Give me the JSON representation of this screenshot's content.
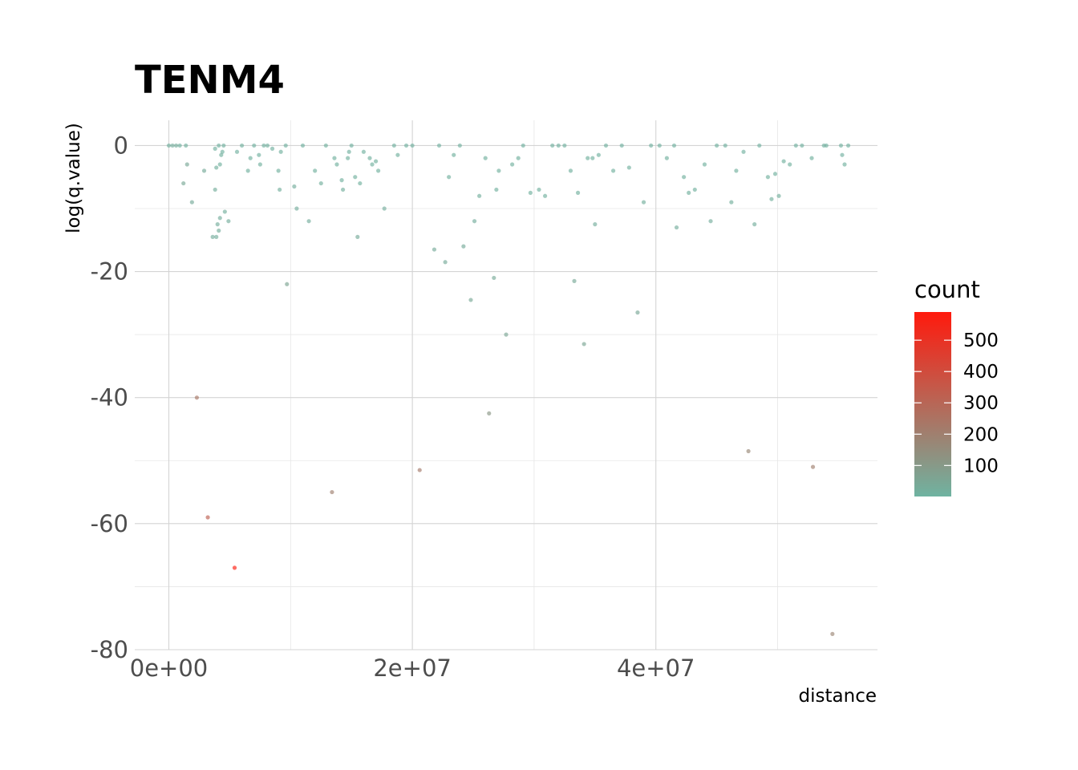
{
  "chart_data": {
    "type": "scatter",
    "title": "TENM4",
    "xlabel": "distance",
    "ylabel": "log(q.value)",
    "xlim": [
      -2800000,
      58200000
    ],
    "ylim": [
      -80,
      4
    ],
    "x_ticks": [
      0,
      20000000,
      40000000
    ],
    "x_tick_labels": [
      "0e+00",
      "2e+07",
      "4e+07"
    ],
    "y_ticks": [
      0,
      -20,
      -40,
      -60,
      -80
    ],
    "y_tick_labels": [
      "0",
      "-20",
      "-40",
      "-60",
      "-80"
    ],
    "grid": true,
    "legend": {
      "title": "count",
      "placement": "right",
      "min": 1,
      "max": 590,
      "ticks": [
        100,
        200,
        300,
        400,
        500
      ],
      "tick_labels": [
        "100",
        "200",
        "300",
        "400",
        "500"
      ],
      "color_low": "#6fb3a1",
      "color_high": "#ff1a0d"
    },
    "points": [
      [
        0,
        0,
        15
      ],
      [
        300000,
        0,
        20
      ],
      [
        600000,
        0,
        25
      ],
      [
        900000,
        0,
        10
      ],
      [
        1400000,
        0,
        12
      ],
      [
        1200000,
        -6,
        40
      ],
      [
        1500000,
        -3,
        45
      ],
      [
        1900000,
        -9,
        30
      ],
      [
        2300000,
        -40,
        230
      ],
      [
        2900000,
        -4,
        30
      ],
      [
        3200000,
        -59,
        320
      ],
      [
        3600000,
        -14.5,
        20
      ],
      [
        3800000,
        -7,
        25
      ],
      [
        3900000,
        -14.5,
        22
      ],
      [
        4000000,
        -12.5,
        20
      ],
      [
        4100000,
        -13.5,
        25
      ],
      [
        4200000,
        -11.5,
        22
      ],
      [
        3900000,
        -3.5,
        15
      ],
      [
        4200000,
        -3,
        12
      ],
      [
        4400000,
        -1,
        10
      ],
      [
        4600000,
        -10.5,
        18
      ],
      [
        4900000,
        -12,
        20
      ],
      [
        3800000,
        -0.5,
        10
      ],
      [
        4100000,
        0,
        8
      ],
      [
        4300000,
        -1.5,
        12
      ],
      [
        4500000,
        0,
        10
      ],
      [
        5400000,
        -67,
        580
      ],
      [
        5600000,
        -1,
        10
      ],
      [
        6000000,
        0,
        12
      ],
      [
        6500000,
        -4,
        14
      ],
      [
        6700000,
        -2,
        12
      ],
      [
        7000000,
        0,
        10
      ],
      [
        7400000,
        -1.5,
        10
      ],
      [
        7500000,
        -3,
        14
      ],
      [
        7800000,
        0,
        10
      ],
      [
        8100000,
        0,
        12
      ],
      [
        8500000,
        -0.5,
        10
      ],
      [
        9000000,
        -4,
        14
      ],
      [
        9100000,
        -7,
        16
      ],
      [
        9200000,
        -1,
        12
      ],
      [
        9600000,
        0,
        10
      ],
      [
        9700000,
        -22,
        60
      ],
      [
        10300000,
        -6.5,
        20
      ],
      [
        10500000,
        -10,
        22
      ],
      [
        11000000,
        0,
        10
      ],
      [
        11500000,
        -12,
        20
      ],
      [
        12000000,
        -4,
        14
      ],
      [
        12500000,
        -6,
        16
      ],
      [
        12900000,
        0,
        12
      ],
      [
        13400000,
        -55,
        200
      ],
      [
        13600000,
        -2,
        12
      ],
      [
        13800000,
        -3,
        12
      ],
      [
        14200000,
        -5.5,
        14
      ],
      [
        14300000,
        -7,
        16
      ],
      [
        14700000,
        -2,
        12
      ],
      [
        14800000,
        -1,
        10
      ],
      [
        15000000,
        0,
        10
      ],
      [
        15300000,
        -5,
        14
      ],
      [
        15500000,
        -14.5,
        30
      ],
      [
        15700000,
        -6,
        14
      ],
      [
        16000000,
        -1,
        10
      ],
      [
        16500000,
        -2,
        12
      ],
      [
        16700000,
        -3,
        12
      ],
      [
        17000000,
        -2.5,
        12
      ],
      [
        17200000,
        -4,
        14
      ],
      [
        17700000,
        -10,
        22
      ],
      [
        18500000,
        0,
        10
      ],
      [
        18800000,
        -1.5,
        12
      ],
      [
        19500000,
        0,
        8
      ],
      [
        20000000,
        0,
        10
      ],
      [
        20600000,
        -51.5,
        220
      ],
      [
        21800000,
        -16.5,
        30
      ],
      [
        22200000,
        0,
        10
      ],
      [
        22700000,
        -18.5,
        32
      ],
      [
        23000000,
        -5,
        14
      ],
      [
        23400000,
        -1.5,
        12
      ],
      [
        23900000,
        0,
        10
      ],
      [
        24200000,
        -16,
        30
      ],
      [
        24800000,
        -24.5,
        40
      ],
      [
        25100000,
        -12,
        20
      ],
      [
        25500000,
        -8,
        16
      ],
      [
        26000000,
        -2,
        12
      ],
      [
        26300000,
        -42.5,
        110
      ],
      [
        26700000,
        -21,
        36
      ],
      [
        26900000,
        -7,
        14
      ],
      [
        27100000,
        -4,
        14
      ],
      [
        27700000,
        -30,
        50
      ],
      [
        28200000,
        -3,
        12
      ],
      [
        28700000,
        -2,
        12
      ],
      [
        29100000,
        0,
        10
      ],
      [
        29700000,
        -7.5,
        14
      ],
      [
        30400000,
        -7,
        14
      ],
      [
        30900000,
        -8,
        14
      ],
      [
        31500000,
        0,
        10
      ],
      [
        32000000,
        0,
        10
      ],
      [
        32500000,
        0,
        10
      ],
      [
        33000000,
        -4,
        12
      ],
      [
        33300000,
        -21.5,
        38
      ],
      [
        33600000,
        -7.5,
        14
      ],
      [
        34100000,
        -31.5,
        52
      ],
      [
        34400000,
        -2,
        12
      ],
      [
        34800000,
        -2,
        12
      ],
      [
        35000000,
        -12.5,
        20
      ],
      [
        35300000,
        -1.5,
        10
      ],
      [
        35900000,
        0,
        10
      ],
      [
        36500000,
        -4,
        12
      ],
      [
        37200000,
        0,
        10
      ],
      [
        37800000,
        -3.5,
        12
      ],
      [
        38500000,
        -26.5,
        44
      ],
      [
        39000000,
        -9,
        16
      ],
      [
        39600000,
        0,
        10
      ],
      [
        40300000,
        0,
        10
      ],
      [
        40900000,
        -2,
        12
      ],
      [
        41500000,
        0,
        10
      ],
      [
        41700000,
        -13,
        20
      ],
      [
        42300000,
        -5,
        14
      ],
      [
        42700000,
        -7.5,
        14
      ],
      [
        43200000,
        -7,
        14
      ],
      [
        44000000,
        -3,
        12
      ],
      [
        44500000,
        -12,
        20
      ],
      [
        45000000,
        0,
        10
      ],
      [
        45700000,
        0,
        10
      ],
      [
        46200000,
        -9,
        16
      ],
      [
        46600000,
        -4,
        12
      ],
      [
        47200000,
        -1,
        10
      ],
      [
        47600000,
        -48.5,
        170
      ],
      [
        48100000,
        -12.5,
        20
      ],
      [
        48500000,
        0,
        10
      ],
      [
        49200000,
        -5,
        14
      ],
      [
        49500000,
        -8.5,
        16
      ],
      [
        49800000,
        -4.5,
        14
      ],
      [
        50100000,
        -8,
        16
      ],
      [
        50500000,
        -2.5,
        12
      ],
      [
        51000000,
        -3,
        12
      ],
      [
        51500000,
        0,
        10
      ],
      [
        52000000,
        0,
        10
      ],
      [
        52800000,
        -2,
        12
      ],
      [
        52900000,
        -51,
        200
      ],
      [
        53800000,
        0,
        10
      ],
      [
        54000000,
        0,
        10
      ],
      [
        54500000,
        -77.5,
        180
      ],
      [
        55200000,
        0,
        10
      ],
      [
        55300000,
        -1.5,
        10
      ],
      [
        55500000,
        -3,
        12
      ],
      [
        55800000,
        0,
        10
      ]
    ]
  }
}
